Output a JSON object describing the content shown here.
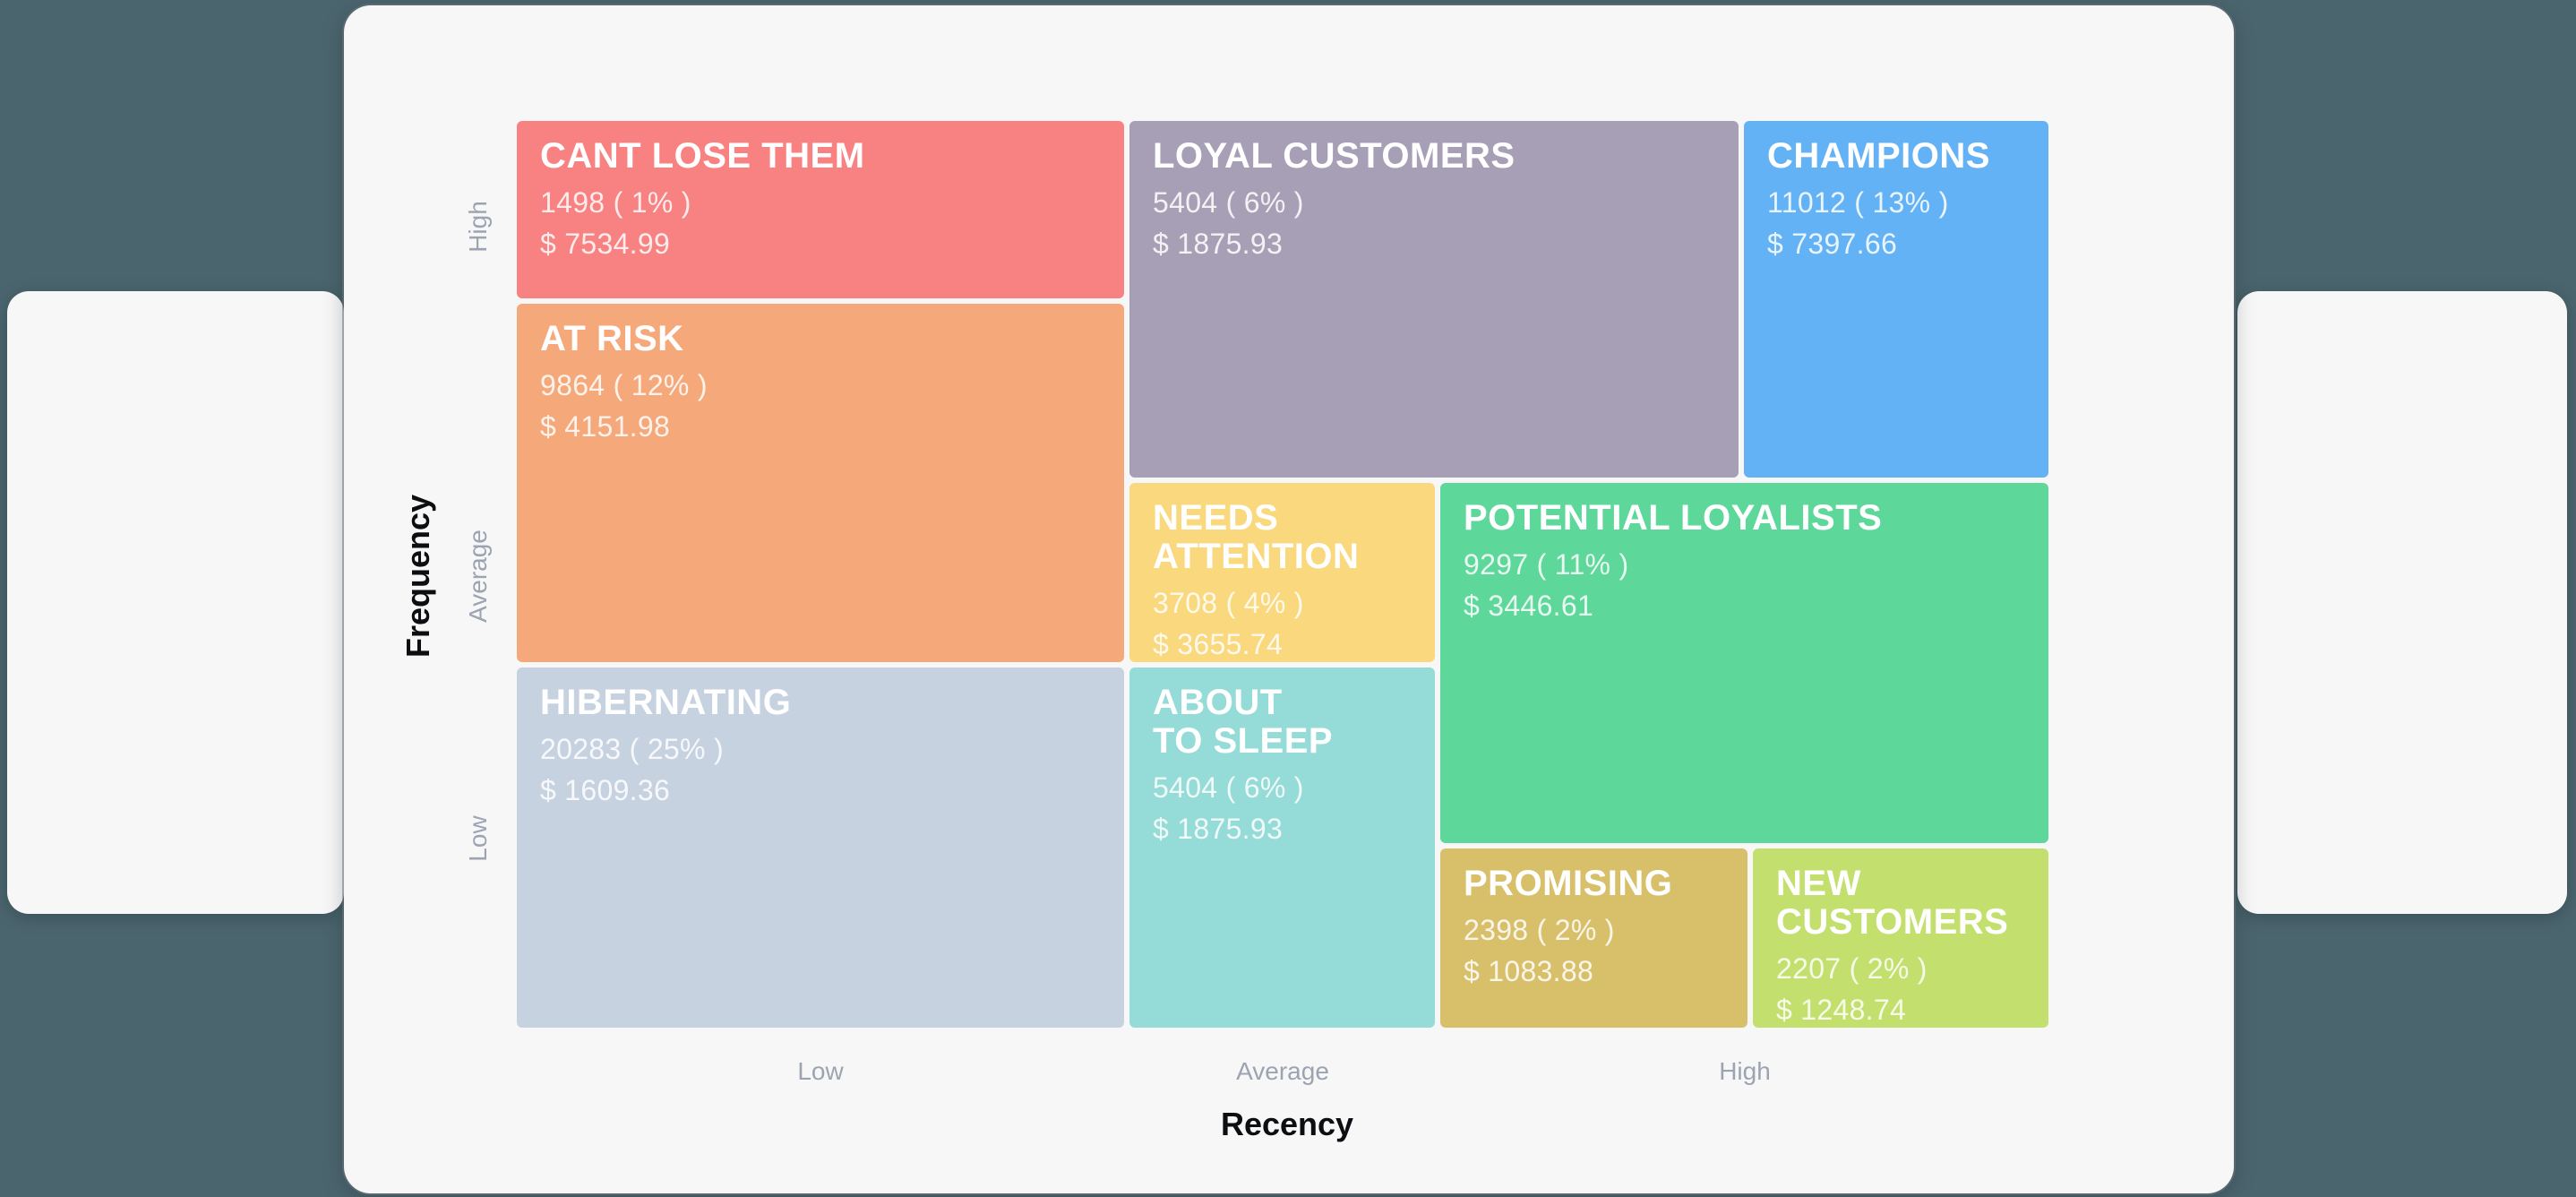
{
  "colors": {
    "page_background": "#4b656e",
    "card_background": "#f7f7f8",
    "axis_title_color": "#0c0e11",
    "tick_label_color": "#9ca3b1",
    "segment_text_color": "#ffffff"
  },
  "chart_data": {
    "type": "treemap",
    "chart_kind": "rfm-customer-segment-grid",
    "xlabel": "Recency",
    "ylabel": "Frequency",
    "x_tick_labels": [
      "Low",
      "Average",
      "High"
    ],
    "y_tick_labels": [
      "High",
      "Average",
      "Low"
    ],
    "grid": "off",
    "legend": "none",
    "segments": [
      {
        "name": "CANT LOSE THEM",
        "display_title": "CANT LOSE THEM",
        "count": 1498,
        "percent": 1,
        "count_display": "1498 ( 1% )",
        "monetary": 7534.99,
        "monetary_display": "$ 7534.99",
        "color": "#f88181",
        "recency": "Low",
        "frequency": "High"
      },
      {
        "name": "LOYAL CUSTOMERS",
        "display_title": "LOYAL CUSTOMERS",
        "count": 5404,
        "percent": 6,
        "count_display": "5404 ( 6% )",
        "monetary": 1875.93,
        "monetary_display": "$ 1875.93",
        "color": "#a79fb5",
        "recency": "Average",
        "frequency": "High"
      },
      {
        "name": "CHAMPIONS",
        "display_title": "CHAMPIONS",
        "count": 11012,
        "percent": 13,
        "count_display": "11012 ( 13% )",
        "monetary": 7397.66,
        "monetary_display": "$ 7397.66",
        "color": "#64b2f6",
        "recency": "High",
        "frequency": "High"
      },
      {
        "name": "AT RISK",
        "display_title": "AT RISK",
        "count": 9864,
        "percent": 12,
        "count_display": "9864 ( 12% )",
        "monetary": 4151.98,
        "monetary_display": "$ 4151.98",
        "color": "#f5a87a",
        "recency": "Low",
        "frequency": "Average"
      },
      {
        "name": "NEEDS ATTENTION",
        "display_title": "NEEDS\nATTENTION",
        "count": 3708,
        "percent": 4,
        "count_display": "3708 ( 4% )",
        "monetary": 3655.74,
        "monetary_display": "$ 3655.74",
        "color": "#fad87d",
        "recency": "Average",
        "frequency": "Average"
      },
      {
        "name": "POTENTIAL LOYALISTS",
        "display_title": "POTENTIAL LOYALISTS",
        "count": 9297,
        "percent": 11,
        "count_display": "9297 ( 11% )",
        "monetary": 3446.61,
        "monetary_display": "$ 3446.61",
        "color": "#5ed79b",
        "recency": "Average-High",
        "frequency": "Average"
      },
      {
        "name": "HIBERNATING",
        "display_title": "HIBERNATING",
        "count": 20283,
        "percent": 25,
        "count_display": "20283 ( 25% )",
        "monetary": 1609.36,
        "monetary_display": "$ 1609.36",
        "color": "#c7d2e0",
        "recency": "Low",
        "frequency": "Low"
      },
      {
        "name": "ABOUT TO SLEEP",
        "display_title": "ABOUT\nTO SLEEP",
        "count": 5404,
        "percent": 6,
        "count_display": "5404 ( 6% )",
        "monetary": 1875.93,
        "monetary_display": "$ 1875.93",
        "color": "#95dbd7",
        "recency": "Average",
        "frequency": "Low"
      },
      {
        "name": "PROMISING",
        "display_title": "PROMISING",
        "count": 2398,
        "percent": 2,
        "count_display": "2398 ( 2% )",
        "monetary": 1083.88,
        "monetary_display": "$ 1083.88",
        "color": "#d8c06b",
        "recency": "High",
        "frequency": "Low"
      },
      {
        "name": "NEW CUSTOMERS",
        "display_title": "NEW\nCUSTOMERS",
        "count": 2207,
        "percent": 2,
        "count_display": "2207 ( 2% )",
        "monetary": 1248.74,
        "monetary_display": "$ 1248.74",
        "color": "#c3e06e",
        "recency": "High",
        "frequency": "Low"
      }
    ]
  }
}
